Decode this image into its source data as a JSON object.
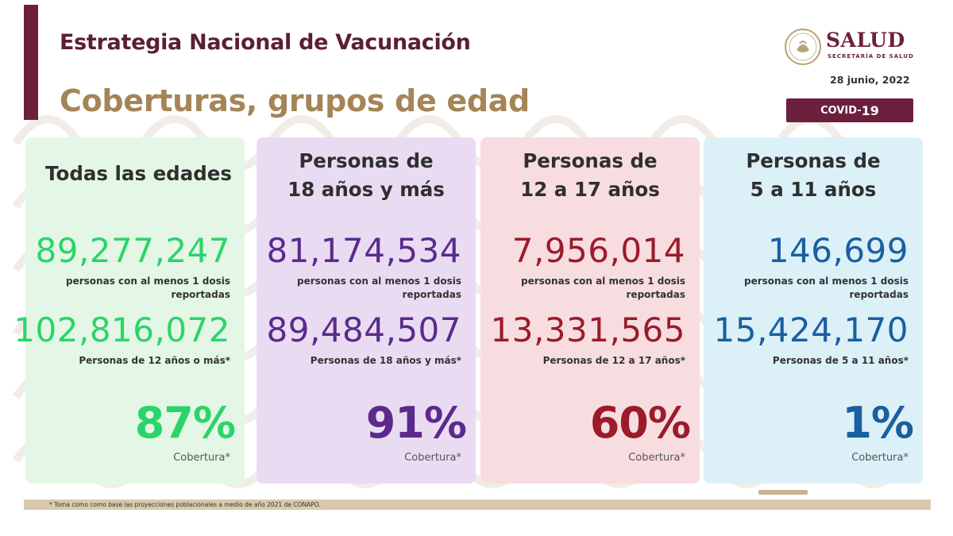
{
  "header": {
    "title": "Estrategia Nacional de Vacunación",
    "subtitle": "Coberturas, grupos de edad",
    "brand": "SALUD",
    "brand_sub": "SECRETARÍA DE SALUD",
    "date": "28 junio, 2022",
    "badge_prefix": "COVID-",
    "badge_number": "19"
  },
  "cards": [
    {
      "heading_line1": "Todas las edades",
      "heading_line2": "",
      "vaccinated": "89,277,247",
      "vaccinated_label_1": "personas con al menos 1 dosis",
      "vaccinated_label_2": "reportadas",
      "population": "102,816,072",
      "population_label": "Personas de 12 años o más*",
      "coverage": "87%",
      "coverage_label": "Cobertura*",
      "color": "#2bd46a",
      "bg": "#e4f7e6"
    },
    {
      "heading_line1": "Personas de",
      "heading_line2": "18 años y más",
      "vaccinated": "81,174,534",
      "vaccinated_label_1": "personas con al menos 1 dosis",
      "vaccinated_label_2": "reportadas",
      "population": "89,484,507",
      "population_label": "Personas de 18 años y más*",
      "coverage": "91%",
      "coverage_label": "Cobertura*",
      "color": "#5b2a8c",
      "bg": "#e9dcf2"
    },
    {
      "heading_line1": "Personas de",
      "heading_line2": "12 a 17 años",
      "vaccinated": "7,956,014",
      "vaccinated_label_1": "personas con al menos 1 dosis",
      "vaccinated_label_2": "reportadas",
      "population": "13,331,565",
      "population_label": "Personas de 12 a 17 años*",
      "coverage": "60%",
      "coverage_label": "Cobertura*",
      "color": "#9b1b2a",
      "bg": "#f7dde0"
    },
    {
      "heading_line1": "Personas de",
      "heading_line2": "5 a 11 años",
      "vaccinated": "146,699",
      "vaccinated_label_1": "personas con al menos 1 dosis",
      "vaccinated_label_2": "reportadas",
      "population": "15,424,170",
      "population_label": "Personas de 5 a 11 años*",
      "coverage": "1%",
      "coverage_label": "Cobertura*",
      "color": "#1a5fa0",
      "bg": "#dcf0f8"
    }
  ],
  "footnote": "* Toma como como base las proyecciones poblacionales a medio de año 2021 de CONAPO."
}
